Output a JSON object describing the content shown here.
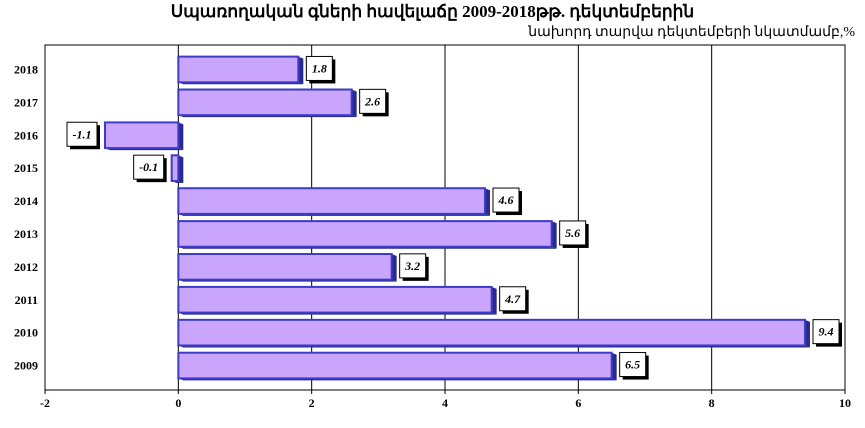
{
  "title": "Սպառողական  գների հավելաճը 2009-2018թթ. դեկտեմբերին",
  "subtitle": "նախորդ տարվա դեկտեմբերի նկատմամբ,%",
  "colors": {
    "bar_fill": "#c9a5fb",
    "bar_edge": "#3c3cc8",
    "bar_shadow": "#2a2a8a",
    "grid": "#000000"
  },
  "chart_data": {
    "type": "bar",
    "orientation": "horizontal",
    "categories": [
      "2018",
      "2017",
      "2016",
      "2015",
      "2014",
      "2013",
      "2012",
      "2011",
      "2010",
      "2009"
    ],
    "values": [
      1.8,
      2.6,
      -1.1,
      -0.1,
      4.6,
      5.6,
      3.2,
      4.7,
      9.4,
      6.5
    ],
    "value_labels": [
      "1.8",
      "2.6",
      "-1.1",
      "-0.1",
      "4.6",
      "5.6",
      "3.2",
      "4.7",
      "9.4",
      "6.5"
    ],
    "xlim": [
      -2,
      10
    ],
    "xticks": [
      "-2",
      "0",
      "2",
      "4",
      "6",
      "8",
      "10"
    ],
    "xtick_values": [
      -2,
      0,
      2,
      4,
      6,
      8,
      10
    ],
    "grid": "vertical",
    "legend": "none"
  }
}
